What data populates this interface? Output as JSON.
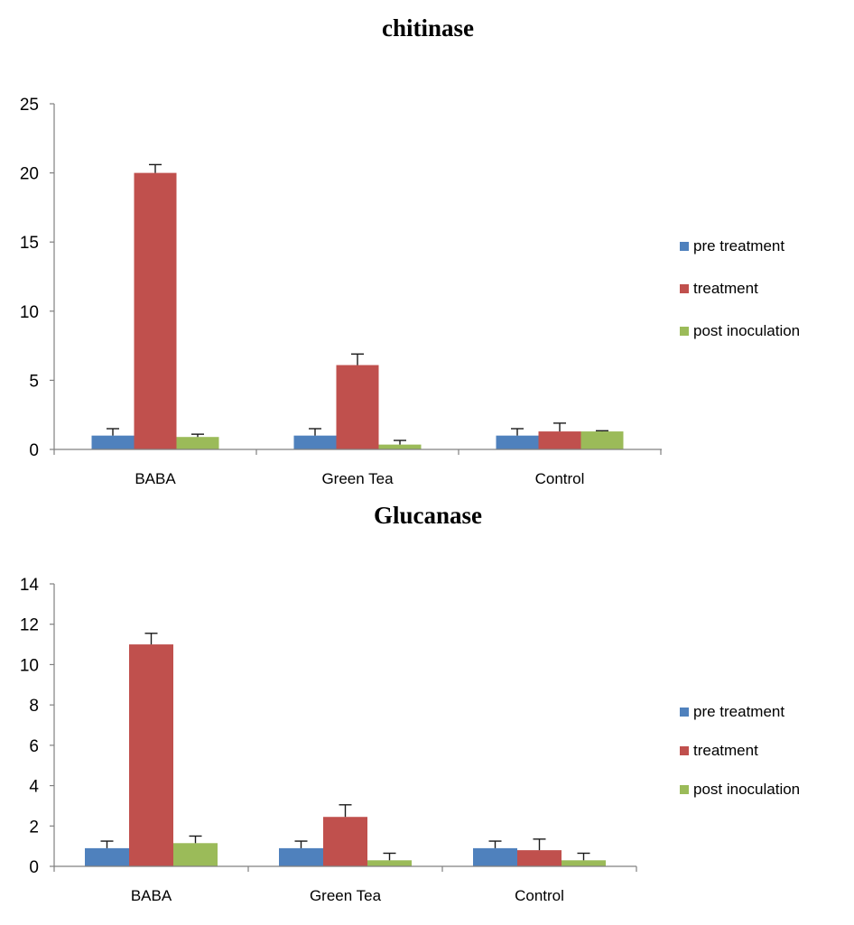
{
  "colors": {
    "pre_treatment": "#4f81bd",
    "treatment": "#c0504d",
    "post_inoculation": "#9bbb59",
    "axis": "#808080",
    "error_bar": "#1a1a1a"
  },
  "chart_data": [
    {
      "type": "bar",
      "title": "chitinase",
      "xlabel": "",
      "ylabel": "",
      "categories": [
        "BABA",
        "Green Tea",
        "Control"
      ],
      "ylim": [
        0,
        25
      ],
      "yticks": [
        0,
        5,
        10,
        15,
        20,
        25
      ],
      "grid": false,
      "legend_position": "right",
      "series": [
        {
          "name": "pre treatment",
          "color_key": "pre_treatment",
          "values": [
            1.0,
            1.0,
            1.0
          ],
          "errors": [
            0.5,
            0.5,
            0.5
          ]
        },
        {
          "name": "treatment",
          "color_key": "treatment",
          "values": [
            20.0,
            6.1,
            1.3
          ],
          "errors": [
            0.6,
            0.8,
            0.6
          ]
        },
        {
          "name": "post inoculation",
          "color_key": "post_inoculation",
          "values": [
            0.9,
            0.35,
            1.3
          ],
          "errors": [
            0.2,
            0.3,
            0.05
          ]
        }
      ]
    },
    {
      "type": "bar",
      "title": "Glucanase",
      "xlabel": "",
      "ylabel": "",
      "categories": [
        "BABA",
        "Green Tea",
        "Control"
      ],
      "ylim": [
        0,
        14
      ],
      "yticks": [
        0,
        2,
        4,
        6,
        8,
        10,
        12,
        14
      ],
      "grid": false,
      "legend_position": "right",
      "series": [
        {
          "name": "pre treatment",
          "color_key": "pre_treatment",
          "values": [
            0.9,
            0.9,
            0.9
          ],
          "errors": [
            0.35,
            0.35,
            0.35
          ]
        },
        {
          "name": "treatment",
          "color_key": "treatment",
          "values": [
            11.0,
            2.45,
            0.8
          ],
          "errors": [
            0.55,
            0.6,
            0.55
          ]
        },
        {
          "name": "post inoculation",
          "color_key": "post_inoculation",
          "values": [
            1.15,
            0.3,
            0.3
          ],
          "errors": [
            0.35,
            0.35,
            0.35
          ]
        }
      ]
    }
  ]
}
